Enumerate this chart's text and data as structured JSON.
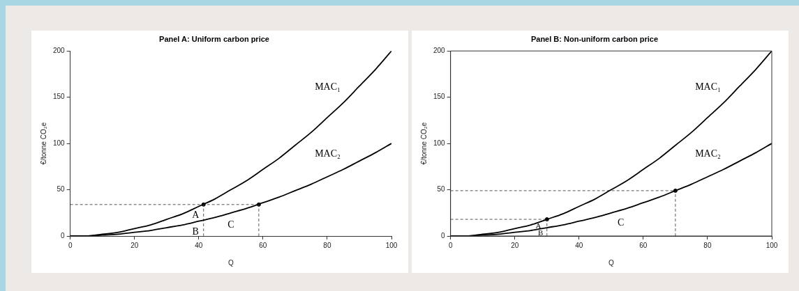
{
  "chart_data": [
    {
      "type": "line",
      "title": "Panel A: Uniform carbon price",
      "xlabel": "Q",
      "ylabel": "€/tonne CO₂e",
      "xlim": [
        0,
        100
      ],
      "xticks": [
        0,
        20,
        40,
        60,
        80,
        100
      ],
      "ylim": [
        0,
        200
      ],
      "yticks": [
        0,
        50,
        100,
        150,
        200
      ],
      "grid": false,
      "legend": false,
      "series": [
        {
          "name": "MAC₁",
          "color": "#000000",
          "marker": "none",
          "line_style": "solid",
          "x": [
            0,
            5,
            10,
            15,
            20,
            25,
            30,
            35,
            40,
            45,
            50,
            55,
            60,
            65,
            70,
            75,
            80,
            85,
            90,
            95,
            100
          ],
          "values": [
            0,
            0,
            2,
            4,
            8,
            12,
            18,
            24,
            32,
            40,
            50,
            60,
            72,
            84,
            98,
            112,
            128,
            144,
            162,
            180,
            200
          ]
        },
        {
          "name": "MAC₂",
          "color": "#000000",
          "marker": "none",
          "line_style": "solid",
          "x": [
            0,
            5,
            10,
            15,
            20,
            25,
            30,
            35,
            40,
            45,
            50,
            55,
            60,
            65,
            70,
            75,
            80,
            85,
            90,
            95,
            100
          ],
          "values": [
            0,
            0,
            1,
            2,
            4,
            6,
            9,
            12,
            16,
            20,
            25,
            30,
            36,
            42,
            49,
            56,
            64,
            72,
            81,
            90,
            100
          ]
        },
        {
          "color": "#555555",
          "marker": "none",
          "line_style": "dashed",
          "x": [
            0,
            58.7
          ],
          "values": [
            34,
            34
          ]
        },
        {
          "color": "#555555",
          "marker": "none",
          "line_style": "dashed",
          "x": [
            41.5,
            41.5
          ],
          "values": [
            0,
            34
          ]
        },
        {
          "color": "#555555",
          "marker": "none",
          "line_style": "dashed",
          "x": [
            58.7,
            58.7
          ],
          "values": [
            0,
            34
          ]
        },
        {
          "type": "scatter",
          "color": "#000000",
          "marker": "circle",
          "x": [
            41.5,
            58.7
          ],
          "values": [
            34,
            34
          ]
        }
      ],
      "annotations": [
        "A",
        "B",
        "C"
      ]
    },
    {
      "type": "line",
      "title": "Panel B: Non-uniform carbon price",
      "xlabel": "Q",
      "ylabel": "€/tonne CO₂e",
      "xlim": [
        0,
        100
      ],
      "xticks": [
        0,
        20,
        40,
        60,
        80,
        100
      ],
      "ylim": [
        0,
        200
      ],
      "yticks": [
        0,
        50,
        100,
        150,
        200
      ],
      "grid": false,
      "legend": false,
      "series": [
        {
          "name": "MAC₁",
          "color": "#000000",
          "marker": "none",
          "line_style": "solid",
          "x": [
            0,
            5,
            10,
            15,
            20,
            25,
            30,
            35,
            40,
            45,
            50,
            55,
            60,
            65,
            70,
            75,
            80,
            85,
            90,
            95,
            100
          ],
          "values": [
            0,
            0,
            2,
            4,
            8,
            12,
            18,
            24,
            32,
            40,
            50,
            60,
            72,
            84,
            98,
            112,
            128,
            144,
            162,
            180,
            200
          ]
        },
        {
          "name": "MAC₂",
          "color": "#000000",
          "marker": "none",
          "line_style": "solid",
          "x": [
            0,
            5,
            10,
            15,
            20,
            25,
            30,
            35,
            40,
            45,
            50,
            55,
            60,
            65,
            70,
            75,
            80,
            85,
            90,
            95,
            100
          ],
          "values": [
            0,
            0,
            1,
            2,
            4,
            6,
            9,
            12,
            16,
            20,
            25,
            30,
            36,
            42,
            49,
            56,
            64,
            72,
            81,
            90,
            100
          ]
        },
        {
          "color": "#555555",
          "marker": "none",
          "line_style": "dashed",
          "x": [
            0,
            30
          ],
          "values": [
            18,
            18
          ]
        },
        {
          "color": "#555555",
          "marker": "none",
          "line_style": "dashed",
          "x": [
            0,
            70
          ],
          "values": [
            49,
            49
          ]
        },
        {
          "color": "#555555",
          "marker": "none",
          "line_style": "dashed",
          "x": [
            30,
            30
          ],
          "values": [
            0,
            18
          ]
        },
        {
          "color": "#555555",
          "marker": "none",
          "line_style": "dashed",
          "x": [
            70,
            70
          ],
          "values": [
            0,
            49
          ]
        },
        {
          "type": "scatter",
          "color": "#000000",
          "marker": "circle",
          "x": [
            30,
            70
          ],
          "values": [
            18,
            49
          ]
        }
      ],
      "annotations": [
        "A",
        "B",
        "C"
      ]
    }
  ]
}
